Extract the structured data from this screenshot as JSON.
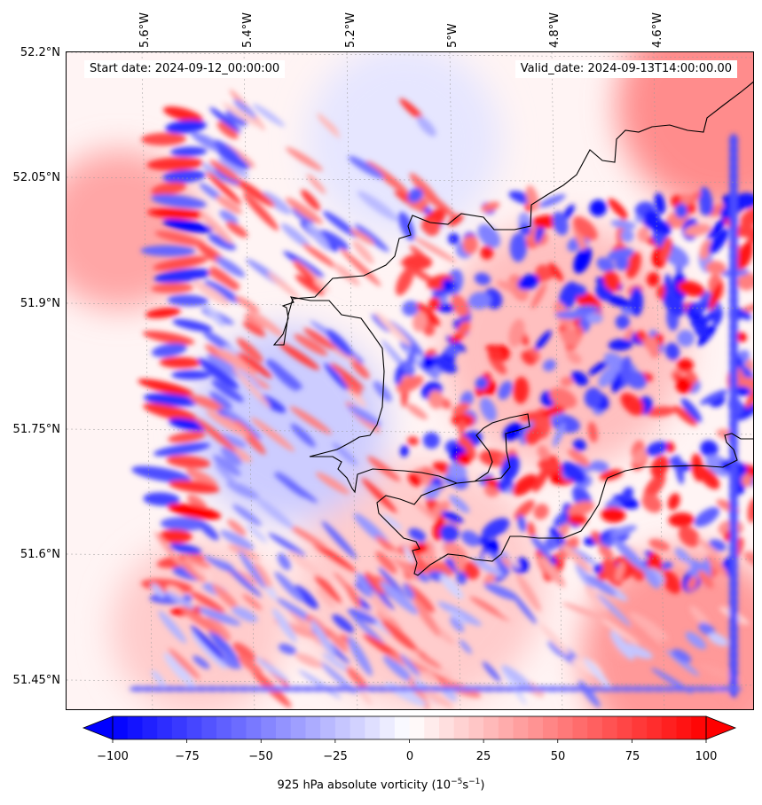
{
  "header": {
    "start_date": "Start date: 2024-09-12_00:00:00",
    "valid_date": "Valid_date: 2024-09-13T14:00:00.00"
  },
  "axes": {
    "lon_labels": [
      "5.6°W",
      "5.4°W",
      "5.2°W",
      "5°W",
      "4.8°W",
      "4.6°W"
    ],
    "lat_labels": [
      "52.2°N",
      "52.05°N",
      "51.9°N",
      "51.75°N",
      "51.6°N",
      "51.45°N"
    ]
  },
  "colorbar": {
    "ticks": [
      "−100",
      "−75",
      "−50",
      "−25",
      "0",
      "25",
      "50",
      "75",
      "100"
    ],
    "label_main": "925 hPa absolute vorticity (10",
    "label_exp1": "−5",
    "label_mid": "s",
    "label_exp2": "−1",
    "label_end": ")",
    "min": -100,
    "max": 100,
    "extend": "both",
    "colormap": "bwr",
    "colors": {
      "negative": "#0000ff",
      "zero": "#ffffff",
      "positive": "#ff0000"
    }
  },
  "map": {
    "field": "925 hPa absolute vorticity",
    "coastline_color": "#000000",
    "gridlines": "dotted grey"
  }
}
